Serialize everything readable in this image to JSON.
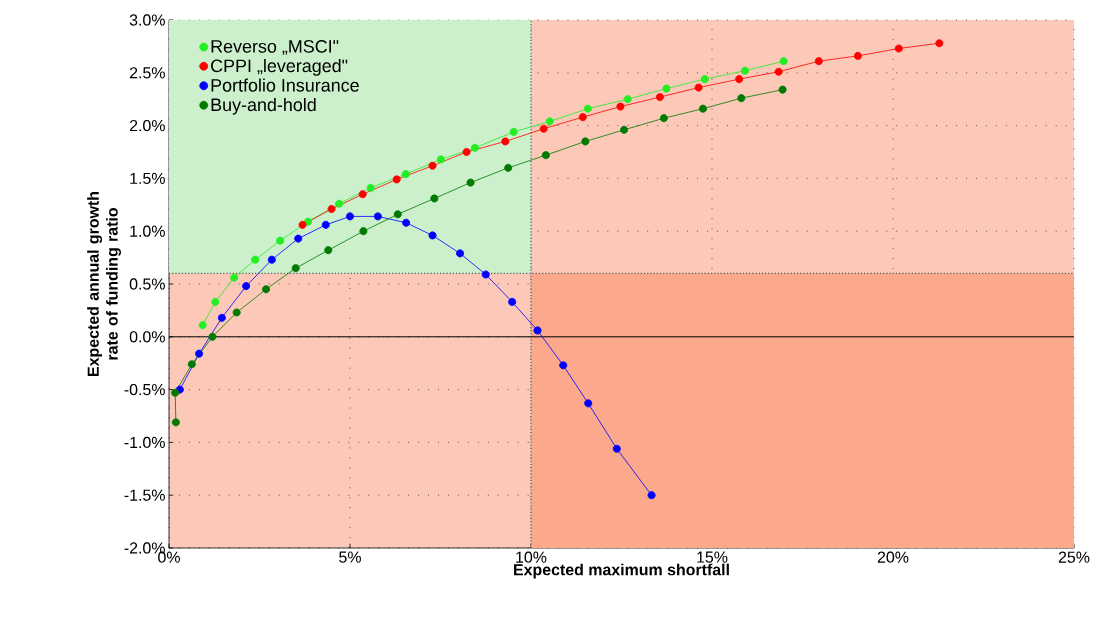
{
  "chart_data": {
    "type": "line",
    "xlabel": "Expected maximum shortfall",
    "ylabel": "Expected annual growth rate of funding ratio",
    "xlim": [
      0,
      25
    ],
    "ylim": [
      -2.0,
      3.0
    ],
    "xticks": [
      {
        "value": 0,
        "label": "0%"
      },
      {
        "value": 5,
        "label": "5%"
      },
      {
        "value": 10,
        "label": "10%"
      },
      {
        "value": 15,
        "label": "15%"
      },
      {
        "value": 20,
        "label": "20%"
      },
      {
        "value": 25,
        "label": "25%"
      }
    ],
    "yticks": [
      {
        "value": -2.0,
        "label": "-2.0%"
      },
      {
        "value": -1.5,
        "label": "-1.5%"
      },
      {
        "value": -1.0,
        "label": "-1.0%"
      },
      {
        "value": -0.5,
        "label": "-0.5%"
      },
      {
        "value": 0,
        "label": "0.0%"
      },
      {
        "value": 0.5,
        "label": "0.5%"
      },
      {
        "value": 1.0,
        "label": "1.0%"
      },
      {
        "value": 1.5,
        "label": "1.5%"
      },
      {
        "value": 2.0,
        "label": "2.0%"
      },
      {
        "value": 2.5,
        "label": "2.5%"
      },
      {
        "value": 3.0,
        "label": "3.0%"
      }
    ],
    "grid": true,
    "legend": "top left",
    "marker": "circle",
    "series": [
      {
        "name": "Reverso „MSCI\"",
        "color": "#22ee22",
        "x": [
          0.93,
          1.28,
          1.8,
          2.38,
          3.07,
          3.84,
          4.7,
          5.57,
          6.54,
          7.51,
          8.45,
          9.52,
          10.52,
          11.57,
          12.67,
          13.74,
          14.8,
          15.91,
          16.98
        ],
        "values": [
          0.11,
          0.33,
          0.56,
          0.73,
          0.91,
          1.09,
          1.26,
          1.41,
          1.54,
          1.68,
          1.79,
          1.94,
          2.04,
          2.16,
          2.25,
          2.35,
          2.44,
          2.52,
          2.61
        ]
      },
      {
        "name": "CPPI „leveraged\"",
        "color": "#ff0000",
        "x": [
          3.69,
          4.49,
          5.35,
          6.29,
          7.28,
          8.22,
          9.29,
          10.35,
          11.43,
          12.47,
          13.56,
          14.63,
          15.75,
          16.84,
          17.95,
          19.03,
          20.16,
          21.28
        ],
        "values": [
          1.06,
          1.21,
          1.35,
          1.49,
          1.62,
          1.75,
          1.85,
          1.97,
          2.08,
          2.18,
          2.27,
          2.36,
          2.44,
          2.51,
          2.61,
          2.66,
          2.73,
          2.78
        ]
      },
      {
        "name": "Portfolio Insurance",
        "color": "#0000ff",
        "x": [
          0.3,
          0.83,
          1.46,
          2.13,
          2.84,
          3.57,
          4.33,
          5.0,
          5.77,
          6.55,
          7.28,
          8.04,
          8.75,
          9.48,
          10.18,
          10.89,
          11.58,
          12.37,
          13.33
        ],
        "values": [
          -0.5,
          -0.16,
          0.18,
          0.48,
          0.73,
          0.93,
          1.06,
          1.14,
          1.14,
          1.08,
          0.96,
          0.79,
          0.59,
          0.33,
          0.06,
          -0.27,
          -0.63,
          -1.06,
          -1.5
        ]
      },
      {
        "name": "Buy-and-hold",
        "color": "#007a00",
        "x": [
          0.19,
          0.17,
          0.63,
          1.2,
          1.87,
          2.68,
          3.5,
          4.4,
          5.37,
          6.32,
          7.33,
          8.33,
          9.37,
          10.41,
          11.5,
          12.57,
          13.67,
          14.75,
          15.81,
          16.95
        ],
        "values": [
          -0.81,
          -0.53,
          -0.26,
          0.0,
          0.23,
          0.45,
          0.65,
          0.82,
          1.0,
          1.16,
          1.31,
          1.46,
          1.6,
          1.72,
          1.85,
          1.96,
          2.07,
          2.16,
          2.26,
          2.34
        ]
      }
    ],
    "ref_lines": [
      {
        "axis": "x",
        "value": 10,
        "color": "#555555",
        "line_style": "dotted"
      },
      {
        "axis": "y",
        "value": 0.6,
        "color": "#555555",
        "line_style": "dotted"
      },
      {
        "axis": "y",
        "value": 0,
        "color": "#000000",
        "line_style": "solid"
      }
    ],
    "bands": [
      {
        "axis": "x",
        "from": 0,
        "to": 10,
        "color": "#ccf0cc"
      },
      {
        "axis": "y",
        "from": -2.0,
        "to": 0.6,
        "color": "#fca88c"
      }
    ]
  }
}
